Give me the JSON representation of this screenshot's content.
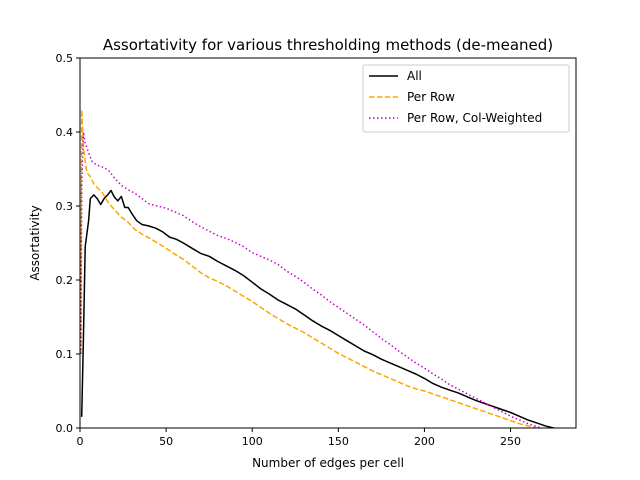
{
  "chart_data": {
    "type": "line",
    "title": "Assortativity for various thresholding methods (de-meaned)",
    "xlabel": "Number of edges per cell",
    "ylabel": "Assortativity",
    "xlim": [
      0,
      288
    ],
    "ylim": [
      0,
      0.5
    ],
    "xticks": [
      0,
      50,
      100,
      150,
      200,
      250
    ],
    "yticks": [
      0.0,
      0.1,
      0.2,
      0.3,
      0.4,
      0.5
    ],
    "xtick_labels": [
      "0",
      "50",
      "100",
      "150",
      "200",
      "250"
    ],
    "ytick_labels": [
      "0.0",
      "0.1",
      "0.2",
      "0.3",
      "0.4",
      "0.5"
    ],
    "grid": false,
    "legend_position": "top-right",
    "series": [
      {
        "name": "All",
        "color": "#000000",
        "style": "solid",
        "points": [
          [
            1,
            0.015
          ],
          [
            2,
            0.12
          ],
          [
            3,
            0.245
          ],
          [
            5,
            0.28
          ],
          [
            6,
            0.31
          ],
          [
            8,
            0.315
          ],
          [
            10,
            0.31
          ],
          [
            12,
            0.302
          ],
          [
            14,
            0.31
          ],
          [
            16,
            0.315
          ],
          [
            18,
            0.321
          ],
          [
            20,
            0.312
          ],
          [
            22,
            0.307
          ],
          [
            24,
            0.313
          ],
          [
            26,
            0.298
          ],
          [
            28,
            0.298
          ],
          [
            30,
            0.29
          ],
          [
            33,
            0.28
          ],
          [
            36,
            0.275
          ],
          [
            40,
            0.273
          ],
          [
            44,
            0.27
          ],
          [
            48,
            0.265
          ],
          [
            52,
            0.258
          ],
          [
            56,
            0.255
          ],
          [
            60,
            0.25
          ],
          [
            65,
            0.243
          ],
          [
            70,
            0.236
          ],
          [
            75,
            0.232
          ],
          [
            80,
            0.225
          ],
          [
            85,
            0.219
          ],
          [
            90,
            0.213
          ],
          [
            95,
            0.206
          ],
          [
            100,
            0.197
          ],
          [
            105,
            0.188
          ],
          [
            110,
            0.181
          ],
          [
            115,
            0.173
          ],
          [
            120,
            0.167
          ],
          [
            125,
            0.161
          ],
          [
            130,
            0.153
          ],
          [
            135,
            0.145
          ],
          [
            140,
            0.138
          ],
          [
            145,
            0.132
          ],
          [
            150,
            0.125
          ],
          [
            155,
            0.118
          ],
          [
            160,
            0.111
          ],
          [
            165,
            0.104
          ],
          [
            170,
            0.099
          ],
          [
            175,
            0.093
          ],
          [
            180,
            0.088
          ],
          [
            185,
            0.083
          ],
          [
            190,
            0.078
          ],
          [
            195,
            0.073
          ],
          [
            200,
            0.067
          ],
          [
            205,
            0.06
          ],
          [
            210,
            0.055
          ],
          [
            215,
            0.051
          ],
          [
            220,
            0.047
          ],
          [
            225,
            0.042
          ],
          [
            230,
            0.037
          ],
          [
            235,
            0.033
          ],
          [
            240,
            0.029
          ],
          [
            245,
            0.025
          ],
          [
            250,
            0.021
          ],
          [
            255,
            0.016
          ],
          [
            260,
            0.011
          ],
          [
            265,
            0.007
          ],
          [
            270,
            0.003
          ],
          [
            275,
            0.0
          ],
          [
            278,
            -0.002
          ]
        ]
      },
      {
        "name": "Per Row",
        "color": "#ffa500",
        "style": "dashed",
        "points": [
          [
            0.5,
            0.1
          ],
          [
            1,
            0.43
          ],
          [
            2,
            0.38
          ],
          [
            3,
            0.36
          ],
          [
            4,
            0.345
          ],
          [
            6,
            0.34
          ],
          [
            8,
            0.33
          ],
          [
            10,
            0.325
          ],
          [
            13,
            0.318
          ],
          [
            16,
            0.306
          ],
          [
            20,
            0.295
          ],
          [
            24,
            0.285
          ],
          [
            28,
            0.278
          ],
          [
            32,
            0.268
          ],
          [
            36,
            0.262
          ],
          [
            40,
            0.257
          ],
          [
            45,
            0.25
          ],
          [
            50,
            0.243
          ],
          [
            55,
            0.235
          ],
          [
            60,
            0.228
          ],
          [
            65,
            0.219
          ],
          [
            70,
            0.21
          ],
          [
            75,
            0.203
          ],
          [
            80,
            0.198
          ],
          [
            85,
            0.192
          ],
          [
            90,
            0.185
          ],
          [
            95,
            0.178
          ],
          [
            100,
            0.171
          ],
          [
            105,
            0.163
          ],
          [
            110,
            0.155
          ],
          [
            115,
            0.148
          ],
          [
            120,
            0.141
          ],
          [
            125,
            0.135
          ],
          [
            130,
            0.129
          ],
          [
            135,
            0.122
          ],
          [
            140,
            0.115
          ],
          [
            145,
            0.108
          ],
          [
            150,
            0.101
          ],
          [
            155,
            0.095
          ],
          [
            160,
            0.089
          ],
          [
            165,
            0.083
          ],
          [
            170,
            0.077
          ],
          [
            175,
            0.072
          ],
          [
            180,
            0.067
          ],
          [
            185,
            0.062
          ],
          [
            190,
            0.057
          ],
          [
            195,
            0.053
          ],
          [
            200,
            0.05
          ],
          [
            205,
            0.046
          ],
          [
            210,
            0.042
          ],
          [
            215,
            0.038
          ],
          [
            220,
            0.034
          ],
          [
            225,
            0.03
          ],
          [
            230,
            0.026
          ],
          [
            235,
            0.022
          ],
          [
            240,
            0.018
          ],
          [
            245,
            0.014
          ],
          [
            250,
            0.01
          ],
          [
            255,
            0.006
          ],
          [
            260,
            0.003
          ],
          [
            265,
            0.0
          ],
          [
            270,
            -0.002
          ]
        ]
      },
      {
        "name": "Per Row, Col-Weighted",
        "color": "#cc00cc",
        "style": "dotted",
        "points": [
          [
            0.5,
            0.1
          ],
          [
            1,
            0.33
          ],
          [
            2,
            0.4
          ],
          [
            3,
            0.385
          ],
          [
            5,
            0.372
          ],
          [
            7,
            0.36
          ],
          [
            10,
            0.355
          ],
          [
            14,
            0.352
          ],
          [
            17,
            0.347
          ],
          [
            20,
            0.338
          ],
          [
            24,
            0.328
          ],
          [
            28,
            0.322
          ],
          [
            32,
            0.317
          ],
          [
            36,
            0.31
          ],
          [
            40,
            0.303
          ],
          [
            45,
            0.3
          ],
          [
            50,
            0.297
          ],
          [
            55,
            0.292
          ],
          [
            60,
            0.287
          ],
          [
            65,
            0.279
          ],
          [
            70,
            0.272
          ],
          [
            75,
            0.266
          ],
          [
            80,
            0.26
          ],
          [
            85,
            0.256
          ],
          [
            90,
            0.251
          ],
          [
            95,
            0.245
          ],
          [
            100,
            0.237
          ],
          [
            105,
            0.232
          ],
          [
            110,
            0.227
          ],
          [
            115,
            0.221
          ],
          [
            120,
            0.212
          ],
          [
            125,
            0.205
          ],
          [
            130,
            0.197
          ],
          [
            135,
            0.188
          ],
          [
            140,
            0.18
          ],
          [
            145,
            0.171
          ],
          [
            150,
            0.163
          ],
          [
            155,
            0.155
          ],
          [
            160,
            0.147
          ],
          [
            165,
            0.139
          ],
          [
            170,
            0.13
          ],
          [
            175,
            0.121
          ],
          [
            180,
            0.113
          ],
          [
            185,
            0.104
          ],
          [
            190,
            0.096
          ],
          [
            195,
            0.088
          ],
          [
            200,
            0.081
          ],
          [
            205,
            0.073
          ],
          [
            210,
            0.066
          ],
          [
            215,
            0.058
          ],
          [
            220,
            0.052
          ],
          [
            225,
            0.046
          ],
          [
            230,
            0.04
          ],
          [
            235,
            0.034
          ],
          [
            240,
            0.028
          ],
          [
            245,
            0.022
          ],
          [
            250,
            0.016
          ],
          [
            255,
            0.011
          ],
          [
            260,
            0.006
          ],
          [
            265,
            0.002
          ],
          [
            268,
            0.0
          ]
        ]
      }
    ]
  }
}
